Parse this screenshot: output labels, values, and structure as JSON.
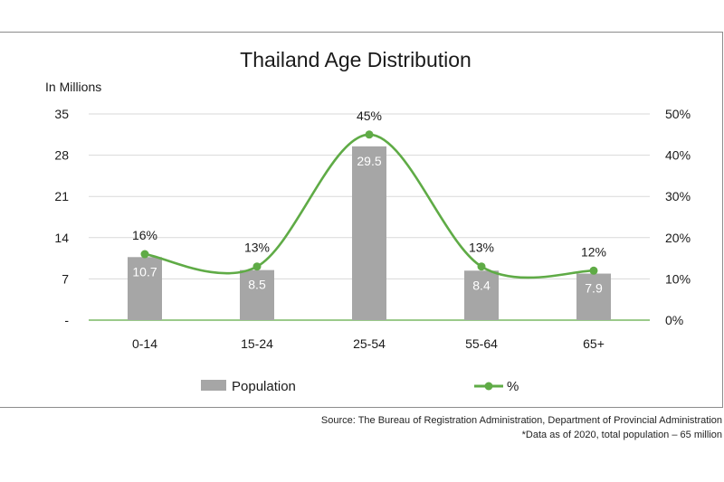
{
  "chart_data": {
    "type": "bar",
    "title": "Thailand Age Distribution",
    "y_unit_label": "In Millions",
    "categories": [
      "0-14",
      "15-24",
      "25-54",
      "55-64",
      "65+"
    ],
    "series": [
      {
        "name": "Population",
        "type": "bar",
        "axis": "left",
        "values": [
          10.7,
          8.5,
          29.5,
          8.4,
          7.9
        ],
        "data_labels": [
          "10.7",
          "8.5",
          "29.5",
          "8.4",
          "7.9"
        ],
        "color": "#a6a6a6"
      },
      {
        "name": "%",
        "type": "line",
        "axis": "right",
        "values": [
          16,
          13,
          45,
          13,
          12
        ],
        "data_labels": [
          "16%",
          "13%",
          "45%",
          "13%",
          "12%"
        ],
        "color": "#5fab46"
      }
    ],
    "y_left": {
      "min": 0,
      "max": 35,
      "ticks": [
        0,
        7,
        14,
        21,
        28,
        35
      ],
      "tick_labels": [
        "-",
        "7",
        "14",
        "21",
        "28",
        "35"
      ]
    },
    "y_right": {
      "min": 0,
      "max": 50,
      "ticks": [
        0,
        10,
        20,
        30,
        40,
        50
      ],
      "tick_labels": [
        "0%",
        "10%",
        "20%",
        "30%",
        "40%",
        "50%"
      ]
    },
    "grid": true,
    "legend_position": "bottom"
  },
  "footer": {
    "source": "Source: The Bureau of Registration Administration, Department of Provincial Administration",
    "note": "*Data as of 2020, total population – 65 million"
  },
  "colors": {
    "bar": "#a6a6a6",
    "line": "#5fab46",
    "grid": "#d9d9d9",
    "frame": "#8c8c8c"
  }
}
